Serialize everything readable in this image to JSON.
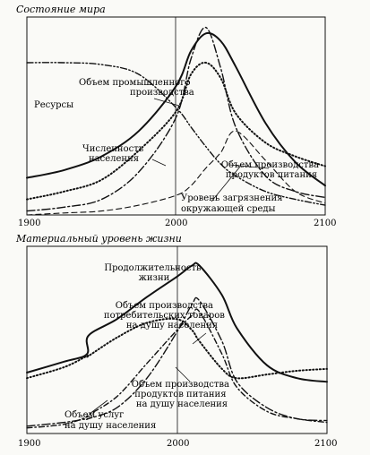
{
  "chart_data": [
    {
      "type": "line",
      "title": "Состояние мира",
      "xlabel": "",
      "ylabel": "",
      "x": [
        1900,
        1925,
        1950,
        1975,
        2000,
        2010,
        2020,
        2030,
        2040,
        2060,
        2080,
        2100
      ],
      "xlim": [
        1900,
        2100
      ],
      "xticks": [
        "1900",
        "2000",
        "2100"
      ],
      "ylim": [
        0,
        100
      ],
      "grid": false,
      "legend": "none",
      "series": [
        {
          "name": "Объем промышленного производства",
          "style": "dash-dot",
          "values": [
            2,
            4,
            8,
            22,
            50,
            80,
            96,
            75,
            45,
            20,
            12,
            9
          ]
        },
        {
          "name": "Ресурсы",
          "style": "dash-dot-dot",
          "values": [
            78,
            78,
            77,
            72,
            55,
            45,
            35,
            26,
            20,
            12,
            8,
            5
          ]
        },
        {
          "name": "Численность населения",
          "style": "solid",
          "values": [
            19,
            23,
            30,
            43,
            66,
            84,
            93,
            89,
            76,
            47,
            27,
            15
          ]
        },
        {
          "name": "Объем производства продуктов питания",
          "style": "dotted",
          "values": [
            8,
            12,
            18,
            33,
            53,
            72,
            78,
            70,
            52,
            37,
            30,
            25
          ]
        },
        {
          "name": "Уровень загрязнения окружающей среды",
          "style": "dashed",
          "values": [
            0,
            1,
            2,
            5,
            10,
            15,
            24,
            32,
            43,
            28,
            12,
            6
          ]
        }
      ],
      "annotations": [
        {
          "id": "industry",
          "lines": [
            "Объем промышленного",
            "производства"
          ]
        },
        {
          "id": "resources",
          "lines": [
            "Ресурсы"
          ]
        },
        {
          "id": "population",
          "lines": [
            "Численность",
            "населения"
          ]
        },
        {
          "id": "food",
          "lines": [
            "Объем производства",
            "продуктов питания"
          ]
        },
        {
          "id": "pollution",
          "lines": [
            "Уровень загрязнения",
            "окружающей среды"
          ]
        }
      ]
    },
    {
      "type": "line",
      "title": "Материальный уровень жизни",
      "xlabel": "",
      "ylabel": "",
      "x": [
        1900,
        1925,
        1940,
        1941,
        1960,
        1980,
        2000,
        2010,
        2015,
        2030,
        2040,
        2060,
        2080,
        2100
      ],
      "xlim": [
        1900,
        2100
      ],
      "xticks": [
        "1900",
        "2000",
        "2100"
      ],
      "ylim": [
        0,
        100
      ],
      "grid": false,
      "legend": "none",
      "series": [
        {
          "name": "Продолжительность жизни",
          "style": "solid",
          "values": [
            33,
            39,
            43,
            53,
            62,
            74,
            85,
            91,
            91,
            75,
            57,
            37,
            30,
            28
          ]
        },
        {
          "name": "Объем производства потребительских товаров на душу населения",
          "style": "dash-dot",
          "values": [
            4,
            6,
            8,
            8,
            14,
            30,
            55,
            70,
            72,
            50,
            28,
            14,
            8,
            7
          ]
        },
        {
          "name": "Объем производства продуктов питания на душу населения",
          "style": "dotted",
          "values": [
            30,
            36,
            42,
            42,
            52,
            60,
            62,
            56,
            50,
            35,
            30,
            32,
            34,
            35
          ]
        },
        {
          "name": "Объем услуг на душу населения",
          "style": "dashed-dot",
          "values": [
            3,
            5,
            9,
            10,
            20,
            38,
            56,
            64,
            66,
            43,
            25,
            12,
            8,
            6
          ]
        }
      ],
      "annotations": [
        {
          "id": "life",
          "lines": [
            "Продолжительность",
            "жизни"
          ]
        },
        {
          "id": "goods",
          "lines": [
            "Объем производства",
            "потребительских товаров",
            "на душу населения"
          ]
        },
        {
          "id": "food_pc",
          "lines": [
            "Объем производства",
            "продуктов питания",
            "на душу населения"
          ]
        },
        {
          "id": "services",
          "lines": [
            "Объем услуг",
            "на душу населения"
          ]
        }
      ]
    }
  ]
}
